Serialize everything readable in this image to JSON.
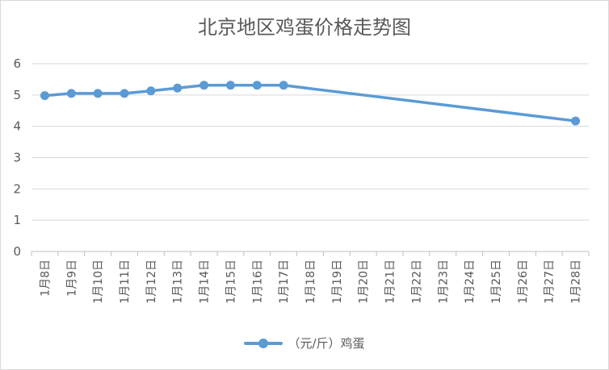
{
  "chart_data": {
    "type": "line",
    "title": "北京地区鸡蛋价格走势图",
    "xlabel": "",
    "ylabel": "",
    "ylim": [
      0,
      6
    ],
    "yticks": [
      0,
      1,
      2,
      3,
      4,
      5,
      6
    ],
    "grid": true,
    "legend_position": "bottom",
    "categories": [
      "1月8日",
      "1月9日",
      "1月10日",
      "1月11日",
      "1月12日",
      "1月13日",
      "1月14日",
      "1月15日",
      "1月16日",
      "1月17日",
      "1月18日",
      "1月19日",
      "1月20日",
      "1月21日",
      "1月22日",
      "1月23日",
      "1月24日",
      "1月25日",
      "1月26日",
      "1月27日",
      "1月28日"
    ],
    "series": [
      {
        "name": "（元/斤）鸡蛋",
        "color": "#5b9bd5",
        "values": [
          4.98,
          5.05,
          5.05,
          5.05,
          5.13,
          5.22,
          5.31,
          5.31,
          5.31,
          5.31,
          null,
          null,
          null,
          null,
          null,
          null,
          null,
          null,
          null,
          null,
          4.17
        ]
      }
    ]
  }
}
